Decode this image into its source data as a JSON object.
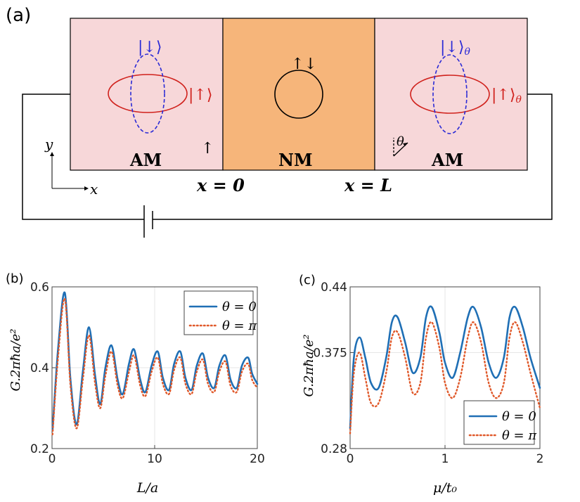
{
  "panel_a": {
    "tag": "(a)",
    "left_region": "AM",
    "middle_region": "NM",
    "right_region": "AM",
    "x0_label": "x = 0",
    "xL_label": "x = L",
    "left_down_ket": "|↓⟩",
    "left_up_ket": "|↑⟩",
    "right_down_ket": "|↓⟩",
    "right_down_sub": "θ",
    "right_up_ket": "|↑⟩",
    "right_up_sub": "θ",
    "nm_spin_symbol": "↑↓",
    "left_arrow_symbol": "↑",
    "theta_symbol": "θ",
    "axis_y": "y",
    "axis_x": "x",
    "colors": {
      "am_fill": "#f7d7d9",
      "nm_fill": "#f6b57a",
      "up_ellipse": "#d0211c",
      "down_ellipse": "#2a2ad6"
    }
  },
  "chart_data": [
    {
      "panel": "(b)",
      "type": "line",
      "xlabel": "L/a",
      "ylabel": "G.2πħa/e²",
      "xlim": [
        0,
        20
      ],
      "ylim": [
        0.2,
        0.6
      ],
      "xticks": [
        0,
        10,
        20
      ],
      "yticks": [
        0.2,
        0.4,
        0.6
      ],
      "grid": true,
      "legend": "top-right",
      "series": [
        {
          "name": "θ = 0",
          "color": "#1f6fb5",
          "style": "solid",
          "x": [
            0.05,
            0.6,
            1.25,
            1.8,
            2.4,
            3.0,
            3.6,
            4.2,
            4.7,
            5.2,
            5.8,
            6.4,
            6.9,
            7.5,
            8.0,
            8.6,
            9.1,
            9.7,
            10.3,
            10.8,
            11.4,
            11.9,
            12.5,
            13.0,
            13.6,
            14.1,
            14.7,
            15.2,
            15.8,
            16.3,
            16.9,
            17.4,
            18.0,
            18.5,
            19.1,
            19.5,
            20.0
          ],
          "y": [
            0.245,
            0.45,
            0.585,
            0.37,
            0.26,
            0.39,
            0.5,
            0.38,
            0.31,
            0.4,
            0.455,
            0.37,
            0.335,
            0.41,
            0.445,
            0.37,
            0.34,
            0.405,
            0.44,
            0.375,
            0.345,
            0.41,
            0.44,
            0.375,
            0.345,
            0.405,
            0.435,
            0.375,
            0.35,
            0.405,
            0.43,
            0.37,
            0.35,
            0.405,
            0.425,
            0.385,
            0.36
          ]
        },
        {
          "name": "θ = π",
          "color": "#e0592a",
          "style": "dotted",
          "x": [
            0.05,
            0.6,
            1.25,
            1.8,
            2.4,
            3.0,
            3.6,
            4.2,
            4.7,
            5.2,
            5.8,
            6.4,
            6.9,
            7.5,
            8.0,
            8.6,
            9.1,
            9.7,
            10.3,
            10.8,
            11.4,
            11.9,
            12.5,
            13.0,
            13.6,
            14.1,
            14.7,
            15.2,
            15.8,
            16.3,
            16.9,
            17.4,
            18.0,
            18.5,
            19.1,
            19.5,
            20.0
          ],
          "y": [
            0.235,
            0.43,
            0.57,
            0.355,
            0.25,
            0.37,
            0.48,
            0.36,
            0.3,
            0.38,
            0.44,
            0.355,
            0.325,
            0.39,
            0.43,
            0.355,
            0.33,
            0.39,
            0.425,
            0.36,
            0.335,
            0.395,
            0.425,
            0.36,
            0.335,
            0.39,
            0.42,
            0.36,
            0.34,
            0.39,
            0.415,
            0.355,
            0.34,
            0.39,
            0.41,
            0.37,
            0.35
          ]
        }
      ]
    },
    {
      "panel": "(c)",
      "type": "line",
      "xlabel": "μ/t₀",
      "ylabel": "G.2πħa/e²",
      "xlim": [
        0,
        2
      ],
      "ylim": [
        0.28,
        0.44
      ],
      "xticks": [
        0,
        1,
        2
      ],
      "yticks": [
        0.28,
        0.375,
        0.44
      ],
      "grid": true,
      "legend": "bottom-right",
      "series": [
        {
          "name": "θ = 0",
          "color": "#1f6fb5",
          "style": "solid",
          "x": [
            0.0,
            0.04,
            0.1,
            0.16,
            0.22,
            0.3,
            0.38,
            0.44,
            0.5,
            0.58,
            0.66,
            0.74,
            0.8,
            0.86,
            0.94,
            1.0,
            1.08,
            1.16,
            1.24,
            1.3,
            1.38,
            1.46,
            1.54,
            1.62,
            1.68,
            1.74,
            1.82,
            1.9,
            2.0
          ],
          "y": [
            0.3,
            0.37,
            0.39,
            0.37,
            0.345,
            0.34,
            0.37,
            0.405,
            0.41,
            0.385,
            0.355,
            0.37,
            0.41,
            0.42,
            0.395,
            0.365,
            0.35,
            0.375,
            0.41,
            0.42,
            0.4,
            0.365,
            0.35,
            0.37,
            0.41,
            0.42,
            0.4,
            0.37,
            0.34
          ]
        },
        {
          "name": "θ = π",
          "color": "#e0592a",
          "style": "dotted",
          "x": [
            0.0,
            0.04,
            0.1,
            0.16,
            0.22,
            0.3,
            0.38,
            0.44,
            0.5,
            0.58,
            0.66,
            0.74,
            0.8,
            0.86,
            0.94,
            1.0,
            1.08,
            1.16,
            1.24,
            1.3,
            1.38,
            1.46,
            1.54,
            1.62,
            1.68,
            1.74,
            1.82,
            1.9,
            2.0
          ],
          "y": [
            0.295,
            0.355,
            0.375,
            0.35,
            0.325,
            0.325,
            0.355,
            0.39,
            0.395,
            0.37,
            0.335,
            0.345,
            0.39,
            0.405,
            0.38,
            0.345,
            0.33,
            0.35,
            0.39,
            0.405,
            0.385,
            0.345,
            0.33,
            0.345,
            0.39,
            0.405,
            0.385,
            0.355,
            0.32
          ]
        }
      ]
    }
  ]
}
